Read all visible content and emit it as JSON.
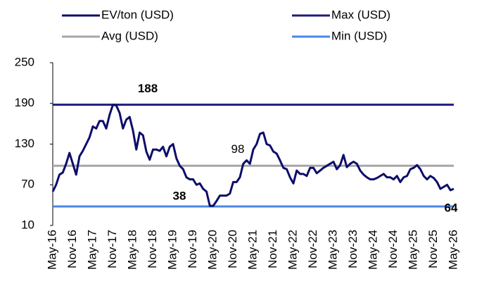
{
  "chart_data": {
    "type": "line",
    "categories": [
      "May-16",
      null,
      null,
      null,
      null,
      null,
      "Nov-16",
      null,
      null,
      null,
      null,
      null,
      "May-17",
      null,
      null,
      null,
      null,
      null,
      "Nov-17",
      null,
      null,
      null,
      null,
      null,
      "May-18",
      null,
      null,
      null,
      null,
      null,
      "Nov-18",
      null,
      null,
      null,
      null,
      null,
      "May-19",
      null,
      null,
      null,
      null,
      null,
      "Nov-19",
      null,
      null,
      null,
      null,
      null,
      "May-20",
      null,
      null,
      null,
      null,
      null,
      "Nov-20",
      null,
      null,
      null,
      null,
      null,
      "May-21",
      null,
      null,
      null,
      null,
      null,
      "Nov-21",
      null,
      null,
      null,
      null,
      null,
      "May-22",
      null,
      null,
      null,
      null,
      null,
      "Nov-22",
      null,
      null,
      null,
      null,
      null,
      "May-23",
      null,
      null,
      null,
      null,
      null,
      "Nov-23",
      null,
      null,
      null,
      null,
      null,
      "May-24",
      null,
      null,
      null,
      null,
      null,
      "Nov-24",
      null,
      null,
      null,
      null,
      null,
      "May-25",
      null,
      null,
      null,
      null,
      null,
      "Nov-25",
      null,
      null,
      null,
      null,
      null,
      "May-26"
    ],
    "series": [
      {
        "name": "EV/ton (USD)",
        "color": "#0d0d6b",
        "values": [
          60,
          70,
          85,
          88,
          101,
          117,
          101,
          85,
          112,
          120,
          130,
          140,
          156,
          153,
          164,
          164,
          153,
          173,
          188,
          187,
          176,
          153,
          166,
          170,
          150,
          122,
          147,
          143,
          119,
          107,
          122,
          122,
          120,
          126,
          112,
          126,
          130,
          109,
          98,
          93,
          81,
          78,
          78,
          70,
          72,
          64,
          60,
          39,
          39,
          46,
          54,
          54,
          54,
          57,
          74,
          74,
          81,
          101,
          106,
          101,
          122,
          130,
          145,
          147,
          130,
          128,
          119,
          116,
          106,
          95,
          93,
          81,
          72,
          91,
          86,
          86,
          83,
          95,
          95,
          87,
          91,
          95,
          98,
          101,
          104,
          93,
          99,
          114,
          96,
          101,
          104,
          101,
          91,
          85,
          81,
          78,
          78,
          80,
          83,
          86,
          81,
          81,
          78,
          83,
          74,
          81,
          83,
          93,
          95,
          99,
          93,
          83,
          78,
          83,
          80,
          74,
          64,
          67,
          70,
          62,
          64
        ]
      }
    ],
    "reference_lines": [
      {
        "name": "Max (USD)",
        "color": "#1c1c80",
        "value": 188
      },
      {
        "name": "Avg (USD)",
        "color": "#a6a6a6",
        "value": 98
      },
      {
        "name": "Min (USD)",
        "color": "#4a86e8",
        "value": 38
      }
    ],
    "ylim": [
      10,
      250
    ],
    "yticks": [
      10,
      70,
      130,
      190,
      250
    ]
  }
}
